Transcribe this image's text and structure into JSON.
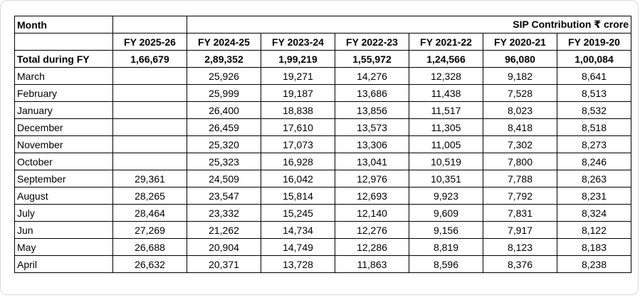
{
  "table": {
    "month_header": "Month",
    "group_title": "SIP Contribution ₹ crore",
    "year_headers": [
      "FY 2025-26",
      "FY 2024-25",
      "FY 2023-24",
      "FY 2022-23",
      "FY 2021-22",
      "FY 2020-21",
      "FY 2019-20"
    ],
    "total": {
      "label": "Total during FY",
      "values": [
        "1,66,679",
        "2,89,352",
        "1,99,219",
        "1,55,972",
        "1,24,566",
        "96,080",
        "1,00,084"
      ]
    },
    "rows": [
      {
        "month": "March",
        "values": [
          "",
          "25,926",
          "19,271",
          "14,276",
          "12,328",
          "9,182",
          "8,641"
        ]
      },
      {
        "month": "February",
        "values": [
          "",
          "25,999",
          "19,187",
          "13,686",
          "11,438",
          "7,528",
          "8,513"
        ]
      },
      {
        "month": "January",
        "values": [
          "",
          "26,400",
          "18,838",
          "13,856",
          "11,517",
          "8,023",
          "8,532"
        ]
      },
      {
        "month": "December",
        "values": [
          "",
          "26,459",
          "17,610",
          "13,573",
          "11,305",
          "8,418",
          "8,518"
        ]
      },
      {
        "month": "November",
        "values": [
          "",
          "25,320",
          "17,073",
          "13,306",
          "11,005",
          "7,302",
          "8,273"
        ]
      },
      {
        "month": "October",
        "values": [
          "",
          "25,323",
          "16,928",
          "13,041",
          "10,519",
          "7,800",
          "8,246"
        ]
      },
      {
        "month": "September",
        "values": [
          "29,361",
          "24,509",
          "16,042",
          "12,976",
          "10,351",
          "7,788",
          "8,263"
        ]
      },
      {
        "month": "August",
        "values": [
          "28,265",
          "23,547",
          "15,814",
          "12,693",
          "9,923",
          "7,792",
          "8,231"
        ]
      },
      {
        "month": "July",
        "values": [
          "28,464",
          "23,332",
          "15,245",
          "12,140",
          "9,609",
          "7,831",
          "8,324"
        ]
      },
      {
        "month": "Jun",
        "values": [
          "27,269",
          "21,262",
          "14,734",
          "12,276",
          "9,156",
          "7,917",
          "8,122"
        ]
      },
      {
        "month": "May",
        "values": [
          "26,688",
          "20,904",
          "14,749",
          "12,286",
          "8,819",
          "8,123",
          "8,183"
        ]
      },
      {
        "month": "April",
        "values": [
          "26,632",
          "20,371",
          "13,728",
          "11,863",
          "8,596",
          "8,376",
          "8,238"
        ]
      }
    ]
  }
}
